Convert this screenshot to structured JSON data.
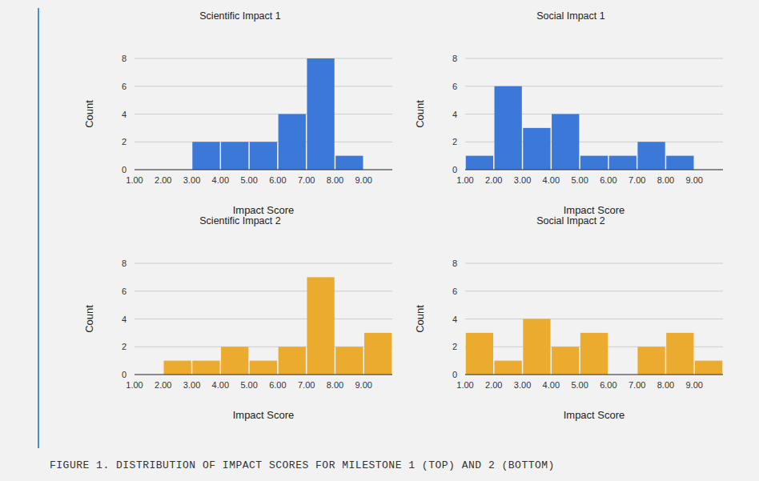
{
  "chart_data": [
    {
      "type": "histogram",
      "title": "Scientific Impact 1",
      "x_label": "Impact Score",
      "y_label": "Count",
      "bins": [
        1,
        2,
        3,
        4,
        5,
        6,
        7,
        8,
        9,
        10
      ],
      "counts": [
        0,
        0,
        2,
        2,
        2,
        4,
        8,
        1,
        0
      ],
      "color": "#3c78d8",
      "xlim": [
        1,
        10
      ],
      "ylim": [
        0,
        8
      ],
      "xticks": [
        {
          "value": 1,
          "label": "1.00"
        },
        {
          "value": 2,
          "label": "2.00"
        },
        {
          "value": 3,
          "label": "3.00"
        },
        {
          "value": 4,
          "label": "4.00"
        },
        {
          "value": 5,
          "label": "5.00"
        },
        {
          "value": 6,
          "label": "6.00"
        },
        {
          "value": 7,
          "label": "7.00"
        },
        {
          "value": 8,
          "label": "8.00"
        },
        {
          "value": 9,
          "label": "9.00"
        }
      ],
      "yticks": [
        0,
        2,
        4,
        6,
        8
      ],
      "grid": true
    },
    {
      "type": "histogram",
      "title": "Social Impact 1",
      "x_label": "Impact Score",
      "y_label": "Count",
      "bins": [
        1,
        2,
        3,
        4,
        5,
        6,
        7,
        8,
        9,
        10
      ],
      "counts": [
        1,
        6,
        3,
        4,
        1,
        1,
        2,
        1,
        0
      ],
      "color": "#3c78d8",
      "xlim": [
        1,
        10
      ],
      "ylim": [
        0,
        8
      ],
      "xticks": [
        {
          "value": 1,
          "label": "1.00"
        },
        {
          "value": 2,
          "label": "2.00"
        },
        {
          "value": 3,
          "label": "3.00"
        },
        {
          "value": 4,
          "label": "4.00"
        },
        {
          "value": 5,
          "label": "5.00"
        },
        {
          "value": 6,
          "label": "6.00"
        },
        {
          "value": 7,
          "label": "7.00"
        },
        {
          "value": 8,
          "label": "8.00"
        },
        {
          "value": 9,
          "label": "9.00"
        }
      ],
      "yticks": [
        0,
        2,
        4,
        6,
        8
      ],
      "grid": true
    },
    {
      "type": "histogram",
      "title": "Scientific Impact 2",
      "x_label": "Impact Score",
      "y_label": "Count",
      "bins": [
        1,
        2,
        3,
        4,
        5,
        6,
        7,
        8,
        9,
        10
      ],
      "counts": [
        0,
        1,
        1,
        2,
        1,
        2,
        7,
        2,
        3
      ],
      "color": "#ebab2e",
      "xlim": [
        1,
        10
      ],
      "ylim": [
        0,
        8
      ],
      "xticks": [
        {
          "value": 1,
          "label": "1.00"
        },
        {
          "value": 2,
          "label": "2.00"
        },
        {
          "value": 3,
          "label": "3.00"
        },
        {
          "value": 4,
          "label": "4.00"
        },
        {
          "value": 5,
          "label": "5.00"
        },
        {
          "value": 6,
          "label": "6.00"
        },
        {
          "value": 7,
          "label": "7.00"
        },
        {
          "value": 8,
          "label": "8.00"
        },
        {
          "value": 9,
          "label": "9.00"
        }
      ],
      "yticks": [
        0,
        2,
        4,
        6,
        8
      ],
      "grid": true
    },
    {
      "type": "histogram",
      "title": "Social Impact 2",
      "x_label": "Impact Score",
      "y_label": "Count",
      "bins": [
        1,
        2,
        3,
        4,
        5,
        6,
        7,
        8,
        9,
        10
      ],
      "counts": [
        3,
        1,
        4,
        2,
        3,
        0,
        2,
        3,
        1
      ],
      "color": "#ebab2e",
      "xlim": [
        1,
        10
      ],
      "ylim": [
        0,
        8
      ],
      "xticks": [
        {
          "value": 1,
          "label": "1.00"
        },
        {
          "value": 2,
          "label": "2.00"
        },
        {
          "value": 3,
          "label": "3.00"
        },
        {
          "value": 4,
          "label": "4.00"
        },
        {
          "value": 5,
          "label": "5.00"
        },
        {
          "value": 6,
          "label": "6.00"
        },
        {
          "value": 7,
          "label": "7.00"
        },
        {
          "value": 8,
          "label": "8.00"
        },
        {
          "value": 9,
          "label": "9.00"
        }
      ],
      "yticks": [
        0,
        2,
        4,
        6,
        8
      ],
      "grid": true
    }
  ],
  "caption": "FIGURE 1. DISTRIBUTION OF IMPACT SCORES FOR MILESTONE 1 (TOP) AND 2 (BOTTOM)"
}
